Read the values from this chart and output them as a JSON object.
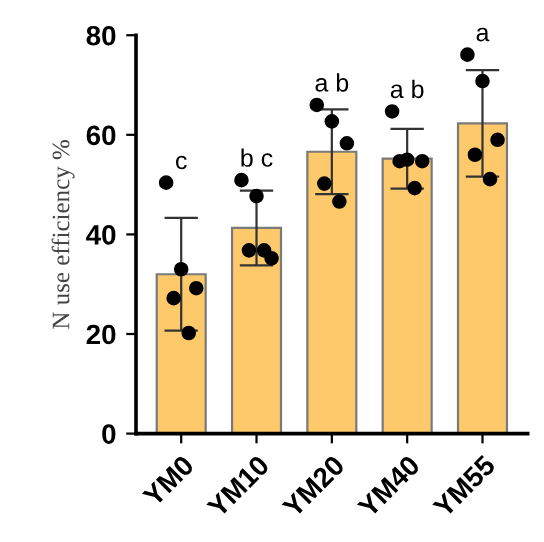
{
  "chart_data": {
    "type": "bar",
    "ylabel": "N use efficiency %",
    "categories": [
      "YM0",
      "YM10",
      "YM20",
      "YM40",
      "YM55"
    ],
    "series": [
      {
        "color": "#fec96b",
        "values": [
          32,
          41.3,
          56.6,
          55.2,
          62.3
        ],
        "errors": [
          11.3,
          7.5,
          8.5,
          6,
          10.7
        ]
      },
      {
        "type": "scatter",
        "color": "#000000",
        "x": [
          "YM0",
          "YM0",
          "YM0",
          "YM0",
          "YM0",
          "YM10",
          "YM10",
          "YM10",
          "YM10",
          "YM10",
          "YM20",
          "YM20",
          "YM20",
          "YM20",
          "YM20",
          "YM40",
          "YM40",
          "YM40",
          "YM40",
          "YM40",
          "YM55",
          "YM55",
          "YM55",
          "YM55",
          "YM55"
        ],
        "values": [
          50.4,
          33,
          29.2,
          27.2,
          20.2,
          50.9,
          47.7,
          35.2,
          36.8,
          36.8,
          66,
          62.7,
          58.3,
          50.2,
          46.6,
          64.7,
          55,
          54.7,
          54.7,
          49.3,
          76.1,
          70.8,
          59,
          56,
          51.1
        ]
      }
    ],
    "ylim": [
      0,
      80
    ],
    "yticks": [
      0,
      20,
      40,
      60,
      80
    ],
    "grid": false,
    "legend": false,
    "marker": "circle",
    "annotations": [
      "c",
      "b c",
      "a b",
      "a b",
      "a"
    ]
  }
}
